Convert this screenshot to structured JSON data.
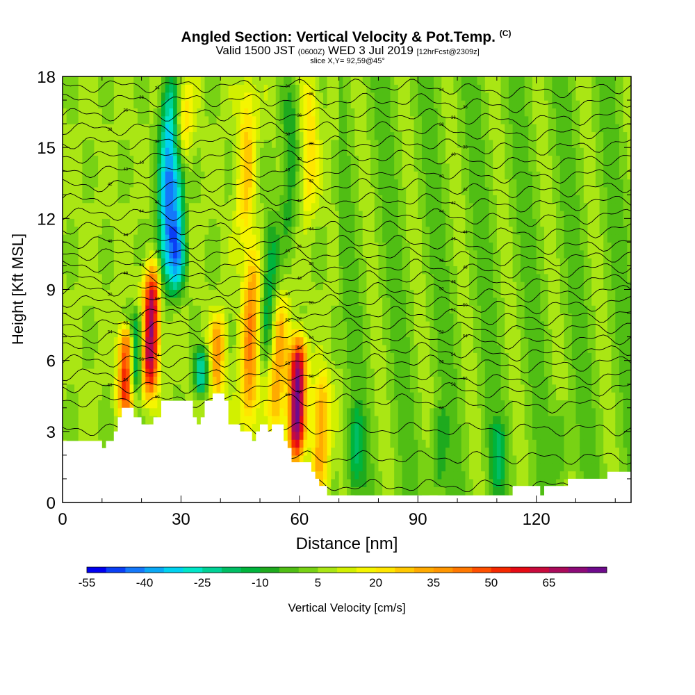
{
  "header": {
    "title_main": "Angled Section: Vertical Velocity & Pot.Temp.",
    "title_unit": "(C)",
    "valid_prefix": "Valid 1500 JST",
    "valid_zulu": "(0600Z)",
    "valid_date": "WED 3 Jul 2019",
    "forecast": "[12hrFcst@2309z]",
    "slice": "slice X,Y= 92,59@45°"
  },
  "chart_data": {
    "type": "heatmap",
    "xlabel": "Distance [nm]",
    "ylabel": "Height [Kft MSL]",
    "xlim": [
      0,
      144
    ],
    "ylim": [
      0,
      18
    ],
    "xticks": [
      "0",
      "30",
      "60",
      "90",
      "120"
    ],
    "yticks": [
      "0",
      "3",
      "6",
      "9",
      "12",
      "15",
      "18"
    ],
    "colorbar": {
      "label": "Vertical Velocity [cm/s]",
      "ticks": [
        "-55",
        "-40",
        "-25",
        "-10",
        "5",
        "20",
        "35",
        "50",
        "65"
      ],
      "levels": [
        -55,
        -50,
        -45,
        -40,
        -35,
        -30,
        -25,
        -20,
        -15,
        -10,
        -5,
        0,
        5,
        10,
        15,
        20,
        25,
        30,
        35,
        40,
        45,
        50,
        55,
        60,
        65,
        70,
        75
      ],
      "colors": [
        "#0000f0",
        "#0a3ff5",
        "#1478fa",
        "#0aa8f5",
        "#00d2f0",
        "#00e6c8",
        "#00d296",
        "#00be64",
        "#00b43c",
        "#1eaa1e",
        "#50be14",
        "#78d214",
        "#aae614",
        "#d2f000",
        "#f5f500",
        "#ffe600",
        "#ffc800",
        "#ffaa00",
        "#ff9600",
        "#ff7800",
        "#ff5000",
        "#f52800",
        "#e60a14",
        "#c80a3c",
        "#aa0a5a",
        "#8c0a78",
        "#6e0a8c"
      ]
    },
    "updrafts": [
      {
        "x": 16,
        "bottom": 3.8,
        "top": 7.5,
        "peak": 60
      },
      {
        "x": 22,
        "bottom": 4.5,
        "top": 10,
        "peak": 65
      },
      {
        "x": 39,
        "bottom": 4.3,
        "top": 8,
        "peak": 28
      },
      {
        "x": 47,
        "bottom": 3.0,
        "top": 11,
        "peak": 32
      },
      {
        "x": 54,
        "bottom": 3.0,
        "top": 9,
        "peak": 28
      },
      {
        "x": 59,
        "bottom": 1.8,
        "top": 7,
        "peak": 70
      },
      {
        "x": 65,
        "bottom": 0.5,
        "top": 5.5,
        "peak": 30
      },
      {
        "x": 30,
        "bottom": 11,
        "top": 18,
        "peak": 22
      },
      {
        "x": 46,
        "bottom": 11,
        "top": 18,
        "peak": 20
      },
      {
        "x": 62,
        "bottom": 12,
        "top": 18,
        "peak": 18
      }
    ],
    "downdrafts": [
      {
        "x": 18,
        "bottom": 4.5,
        "top": 8,
        "peak": -40
      },
      {
        "x": 26,
        "bottom": 9,
        "top": 18,
        "peak": -42
      },
      {
        "x": 29,
        "bottom": 9,
        "top": 15,
        "peak": -45
      },
      {
        "x": 35,
        "bottom": 4.5,
        "top": 6.5,
        "peak": -30
      },
      {
        "x": 52,
        "bottom": 6,
        "top": 12,
        "peak": -22
      },
      {
        "x": 57,
        "bottom": 11,
        "top": 18,
        "peak": -15
      },
      {
        "x": 74,
        "bottom": 0.5,
        "top": 4,
        "peak": -15
      },
      {
        "x": 95,
        "bottom": 0.5,
        "top": 4,
        "peak": -12
      },
      {
        "x": 110,
        "bottom": 0.5,
        "top": 3.5,
        "peak": -14
      },
      {
        "x": 126,
        "bottom": 1,
        "top": 4,
        "peak": -10
      }
    ],
    "terrain_profile": [
      {
        "x": 0,
        "h": 2.6
      },
      {
        "x": 10,
        "h": 2.6
      },
      {
        "x": 10,
        "h": 2.3
      },
      {
        "x": 11,
        "h": 2.3
      },
      {
        "x": 11,
        "h": 2.6
      },
      {
        "x": 13,
        "h": 2.6
      },
      {
        "x": 13,
        "h": 3.0
      },
      {
        "x": 14,
        "h": 3.0
      },
      {
        "x": 14,
        "h": 3.6
      },
      {
        "x": 15,
        "h": 3.6
      },
      {
        "x": 15,
        "h": 4.0
      },
      {
        "x": 18,
        "h": 4.0
      },
      {
        "x": 18,
        "h": 3.6
      },
      {
        "x": 20,
        "h": 3.6
      },
      {
        "x": 20,
        "h": 3.3
      },
      {
        "x": 23,
        "h": 3.3
      },
      {
        "x": 23,
        "h": 3.6
      },
      {
        "x": 25,
        "h": 3.6
      },
      {
        "x": 25,
        "h": 4.3
      },
      {
        "x": 33,
        "h": 4.3
      },
      {
        "x": 33,
        "h": 3.6
      },
      {
        "x": 34,
        "h": 3.6
      },
      {
        "x": 34,
        "h": 3.3
      },
      {
        "x": 35,
        "h": 3.3
      },
      {
        "x": 35,
        "h": 3.6
      },
      {
        "x": 36,
        "h": 3.6
      },
      {
        "x": 36,
        "h": 4.3
      },
      {
        "x": 38,
        "h": 4.3
      },
      {
        "x": 38,
        "h": 4.6
      },
      {
        "x": 41,
        "h": 4.6
      },
      {
        "x": 41,
        "h": 4.3
      },
      {
        "x": 42,
        "h": 4.3
      },
      {
        "x": 42,
        "h": 3.3
      },
      {
        "x": 45,
        "h": 3.3
      },
      {
        "x": 45,
        "h": 3.0
      },
      {
        "x": 48,
        "h": 3.0
      },
      {
        "x": 48,
        "h": 2.6
      },
      {
        "x": 49,
        "h": 2.6
      },
      {
        "x": 49,
        "h": 3.0
      },
      {
        "x": 50,
        "h": 3.0
      },
      {
        "x": 50,
        "h": 3.3
      },
      {
        "x": 52,
        "h": 3.3
      },
      {
        "x": 52,
        "h": 3.0
      },
      {
        "x": 53,
        "h": 3.0
      },
      {
        "x": 53,
        "h": 3.3
      },
      {
        "x": 56,
        "h": 3.3
      },
      {
        "x": 56,
        "h": 2.6
      },
      {
        "x": 57,
        "h": 2.6
      },
      {
        "x": 57,
        "h": 2.3
      },
      {
        "x": 58,
        "h": 2.3
      },
      {
        "x": 58,
        "h": 1.7
      },
      {
        "x": 63,
        "h": 1.7
      },
      {
        "x": 63,
        "h": 1.3
      },
      {
        "x": 64,
        "h": 1.3
      },
      {
        "x": 64,
        "h": 1.0
      },
      {
        "x": 65,
        "h": 1.0
      },
      {
        "x": 65,
        "h": 0.7
      },
      {
        "x": 67,
        "h": 0.7
      },
      {
        "x": 67,
        "h": 0.3
      },
      {
        "x": 114,
        "h": 0.3
      },
      {
        "x": 114,
        "h": 0.7
      },
      {
        "x": 121,
        "h": 0.7
      },
      {
        "x": 121,
        "h": 0.3
      },
      {
        "x": 122,
        "h": 0.3
      },
      {
        "x": 122,
        "h": 0.7
      },
      {
        "x": 128,
        "h": 0.7
      },
      {
        "x": 128,
        "h": 1.0
      },
      {
        "x": 138,
        "h": 1.0
      },
      {
        "x": 138,
        "h": 1.3
      },
      {
        "x": 144,
        "h": 1.3
      }
    ],
    "isentropes": [
      {
        "base": 0.7,
        "label": ""
      },
      {
        "base": 1.9,
        "label": ""
      },
      {
        "base": 3.1,
        "label": ""
      },
      {
        "base": 4.3,
        "label": "60"
      },
      {
        "base": 4.9,
        "label": "58"
      },
      {
        "base": 5.4,
        "label": "56"
      },
      {
        "base": 6.0,
        "label": "56"
      },
      {
        "base": 6.5,
        "label": "54"
      },
      {
        "base": 7.0,
        "label": "54"
      },
      {
        "base": 7.5,
        "label": "52"
      },
      {
        "base": 8.0,
        "label": "52"
      },
      {
        "base": 8.5,
        "label": "50"
      },
      {
        "base": 9.0,
        "label": "50"
      },
      {
        "base": 9.5,
        "label": "48"
      },
      {
        "base": 10.0,
        "label": "48"
      },
      {
        "base": 10.5,
        "label": "46"
      },
      {
        "base": 11.0,
        "label": "46"
      },
      {
        "base": 11.6,
        "label": "44"
      },
      {
        "base": 12.2,
        "label": "44"
      },
      {
        "base": 12.8,
        "label": "42"
      },
      {
        "base": 13.4,
        "label": "42"
      },
      {
        "base": 14.0,
        "label": "40"
      },
      {
        "base": 14.6,
        "label": "40"
      },
      {
        "base": 15.2,
        "label": "38"
      },
      {
        "base": 15.8,
        "label": "38"
      },
      {
        "base": 16.4,
        "label": "36"
      },
      {
        "base": 17.0,
        "label": "36"
      },
      {
        "base": 17.6,
        "label": "34"
      }
    ]
  }
}
